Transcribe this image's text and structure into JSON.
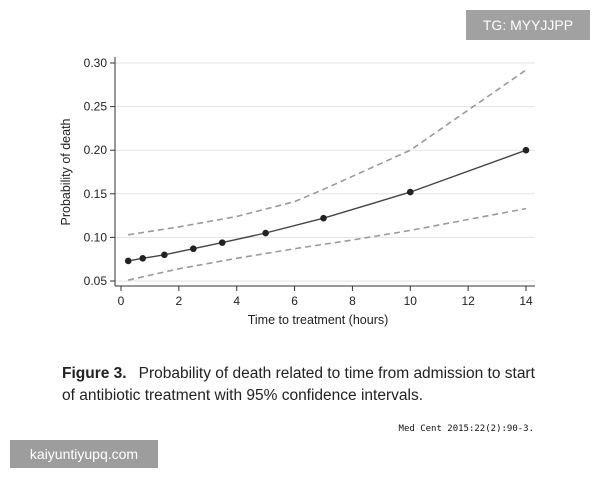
{
  "chart_data": {
    "type": "line",
    "xlabel": "Time to treatment (hours)",
    "ylabel": "Probability of death",
    "xlim": [
      0,
      14
    ],
    "ylim": [
      0.05,
      0.3
    ],
    "x_ticks": [
      "0",
      "2",
      "4",
      "6",
      "8",
      "10",
      "12",
      "14"
    ],
    "y_ticks": [
      "0.05",
      "0.10",
      "0.15",
      "0.20",
      "0.25",
      "0.30"
    ],
    "grid": "horizontal",
    "series": [
      {
        "style": "solid-markers",
        "x": [
          0.25,
          0.75,
          1.5,
          2.5,
          3.5,
          5,
          7,
          10,
          14
        ],
        "y": [
          0.073,
          0.076,
          0.08,
          0.087,
          0.094,
          0.105,
          0.122,
          0.152,
          0.2
        ]
      },
      {
        "style": "dashed",
        "x": [
          0.25,
          2,
          4,
          6,
          7,
          10,
          14
        ],
        "y": [
          0.103,
          0.112,
          0.124,
          0.141,
          0.155,
          0.2,
          0.292
        ]
      },
      {
        "style": "dashed",
        "x": [
          0.25,
          2,
          4,
          6,
          8,
          10,
          14
        ],
        "y": [
          0.051,
          0.064,
          0.076,
          0.087,
          0.097,
          0.108,
          0.133
        ]
      }
    ],
    "colors": {
      "line": "#444444",
      "ci": "#9a9a9a",
      "grid": "#e3e3e3"
    }
  },
  "caption": {
    "label": "Figure 3.",
    "text": "Probability of death related to time from admission to start of antibiotic treatment with 95% confidence intervals."
  },
  "citation": "Med Cent 2015:22(2):90-3.",
  "watermarks": {
    "top": "TG: MYYJJPP",
    "bottom": "kaiyuntiyupq.com"
  }
}
